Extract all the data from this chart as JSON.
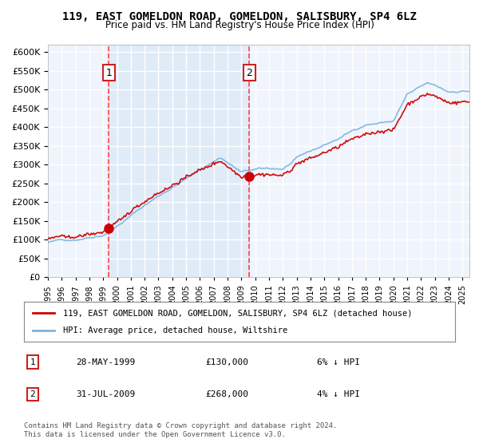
{
  "title": "119, EAST GOMELDON ROAD, GOMELDON, SALISBURY, SP4 6LZ",
  "subtitle": "Price paid vs. HM Land Registry's House Price Index (HPI)",
  "legend_entries": [
    "119, EAST GOMELDON ROAD, GOMELDON, SALISBURY, SP4 6LZ (detached house)",
    "HPI: Average price, detached house, Wiltshire"
  ],
  "purchase_1": {
    "date_num": 1999.41,
    "price": 130000,
    "label": "1"
  },
  "purchase_2": {
    "date_num": 2009.58,
    "price": 268000,
    "label": "2"
  },
  "table_rows": [
    {
      "label": "1",
      "date": "28-MAY-1999",
      "price": "£130,000",
      "pct": "6% ↓ HPI"
    },
    {
      "label": "2",
      "date": "31-JUL-2009",
      "price": "£268,000",
      "pct": "4% ↓ HPI"
    }
  ],
  "footer": "Contains HM Land Registry data © Crown copyright and database right 2024.\nThis data is licensed under the Open Government Licence v3.0.",
  "ylim": [
    0,
    620000
  ],
  "xlim_start": 1995.0,
  "xlim_end": 2025.5,
  "bg_color": "#dce9f7",
  "plot_bg": "#f0f4fc",
  "grid_color": "#ffffff",
  "hpi_color": "#7ab3e0",
  "price_color": "#cc0000",
  "vline_color": "#ff4444",
  "box_color": "#cc2222"
}
